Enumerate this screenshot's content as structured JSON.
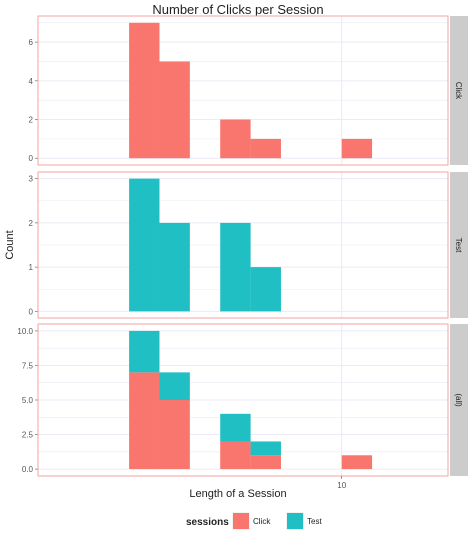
{
  "chart_data": {
    "type": "bar",
    "title": "Number of Clicks per Session",
    "xlabel": "Length of a Session",
    "ylabel": "Count",
    "x_ticks": [
      10
    ],
    "bins": [
      [
        2,
        3
      ],
      [
        3,
        4
      ],
      [
        4,
        5
      ],
      [
        5,
        6
      ],
      [
        6,
        7
      ],
      [
        7,
        8
      ],
      [
        8,
        9
      ],
      [
        9,
        10
      ],
      [
        10,
        11
      ],
      [
        11,
        12
      ],
      [
        12,
        13
      ]
    ],
    "panels": [
      {
        "strip": "Click",
        "ylim": [
          -0.35,
          7.35
        ],
        "y_ticks": [
          "0",
          "2",
          "4",
          "6"
        ],
        "y_tick_values": [
          0,
          2,
          4,
          6
        ],
        "series": [
          {
            "name": "Click",
            "values": [
              0,
              7,
              5,
              0,
              2,
              1,
              0,
              0,
              1,
              0,
              0
            ]
          }
        ]
      },
      {
        "strip": "Test",
        "ylim": [
          -0.15,
          3.15
        ],
        "y_ticks": [
          "0",
          "1",
          "2",
          "3"
        ],
        "y_tick_values": [
          0,
          1,
          2,
          3
        ],
        "series": [
          {
            "name": "Test",
            "values": [
              0,
              3,
              2,
              0,
              2,
              1,
              0,
              0,
              0,
              0,
              0
            ]
          }
        ]
      },
      {
        "strip": "(all)",
        "ylim": [
          -0.5,
          10.5
        ],
        "y_ticks": [
          "0.0",
          "2.5",
          "5.0",
          "7.5",
          "10.0"
        ],
        "y_tick_values": [
          0,
          2.5,
          5,
          7.5,
          10
        ],
        "stacked": true,
        "series": [
          {
            "name": "Click",
            "values": [
              0,
              7,
              5,
              0,
              2,
              1,
              0,
              0,
              1,
              0,
              0
            ]
          },
          {
            "name": "Test",
            "values": [
              0,
              3,
              2,
              0,
              2,
              1,
              0,
              0,
              0,
              0,
              0
            ]
          }
        ]
      }
    ],
    "legend": {
      "title": "sessions",
      "position": "bottom",
      "entries": [
        "Click",
        "Test"
      ]
    },
    "grid": true,
    "colors": {
      "Click": "#f8766d",
      "Test": "#1fbfc3",
      "grid": "#ebeaf5",
      "panel_border": "#f5a3a3",
      "strip_bg": "#cccccc"
    }
  }
}
